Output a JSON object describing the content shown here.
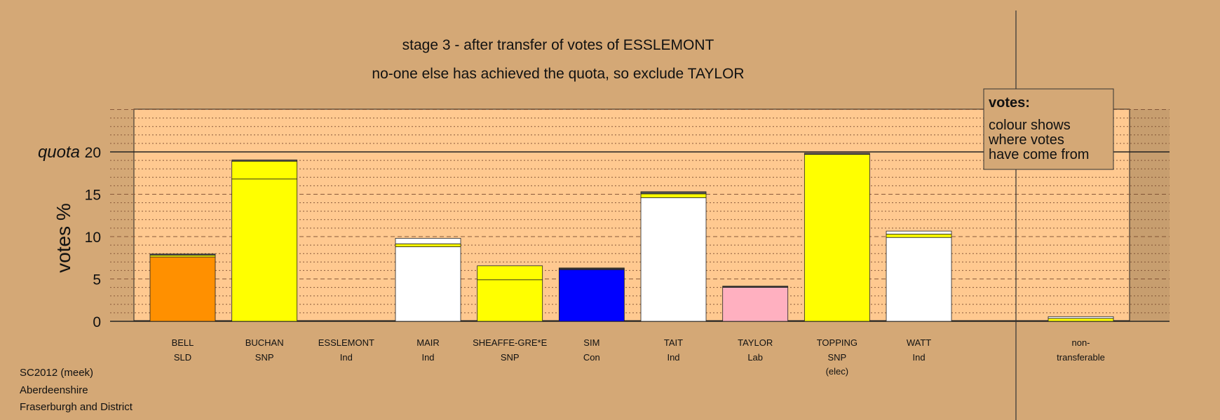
{
  "chart_data": {
    "type": "bar",
    "stacked": true,
    "title": "stage 3 - after transfer of votes of ESSLEMONT",
    "subtitle": "no-one else has achieved the quota, so exclude TAYLOR",
    "ylabel": "votes %",
    "ylim": [
      0,
      25
    ],
    "yticks": [
      0,
      5,
      10,
      15,
      20
    ],
    "quota_label": "quota",
    "quota_value": 20,
    "grid": true,
    "legend": {
      "title": "votes:",
      "lines": [
        "colour shows",
        "where votes",
        "have come from"
      ],
      "placement": "top-right"
    },
    "bars": [
      {
        "name": "BELL",
        "party": "SLD",
        "note": "",
        "segments": [
          {
            "value": 7.6,
            "color": "#ff9000"
          },
          {
            "value": 0.2,
            "color": "#ffff00"
          },
          {
            "value": 0.15,
            "color": "#555555"
          }
        ]
      },
      {
        "name": "BUCHAN",
        "party": "SNP",
        "note": "",
        "segments": [
          {
            "value": 16.8,
            "color": "#ffff00"
          },
          {
            "value": 2.1,
            "color": "#ffff00"
          },
          {
            "value": 0.15,
            "color": "#555555"
          }
        ]
      },
      {
        "name": "ESSLEMONT",
        "party": "Ind",
        "note": "",
        "segments": []
      },
      {
        "name": "MAIR",
        "party": "Ind",
        "note": "",
        "segments": [
          {
            "value": 8.8,
            "color": "#ffffff"
          },
          {
            "value": 0.35,
            "color": "#ffff00"
          },
          {
            "value": 0.65,
            "color": "#ffffff"
          }
        ]
      },
      {
        "name": "SHEAFFE-GRE*E",
        "party": "SNP",
        "note": "",
        "segments": [
          {
            "value": 4.9,
            "color": "#ffff00"
          },
          {
            "value": 1.65,
            "color": "#ffff00"
          }
        ]
      },
      {
        "name": "SIM",
        "party": "Con",
        "note": "",
        "segments": [
          {
            "value": 6.1,
            "color": "#0000ff"
          },
          {
            "value": 0.2,
            "color": "#333333"
          }
        ]
      },
      {
        "name": "TAIT",
        "party": "Ind",
        "note": "",
        "segments": [
          {
            "value": 14.6,
            "color": "#ffffff"
          },
          {
            "value": 0.45,
            "color": "#ffff00"
          },
          {
            "value": 0.25,
            "color": "#555555"
          }
        ]
      },
      {
        "name": "TAYLOR",
        "party": "Lab",
        "note": "",
        "segments": [
          {
            "value": 4.0,
            "color": "#ffb0c0"
          },
          {
            "value": 0.15,
            "color": "#333333"
          }
        ]
      },
      {
        "name": "TOPPING",
        "party": "SNP",
        "note": "(elec)",
        "segments": [
          {
            "value": 19.7,
            "color": "#ffff00"
          },
          {
            "value": 0.15,
            "color": "#555555"
          }
        ]
      },
      {
        "name": "WATT",
        "party": "Ind",
        "note": "",
        "segments": [
          {
            "value": 9.9,
            "color": "#ffffff"
          },
          {
            "value": 0.4,
            "color": "#ffff00"
          },
          {
            "value": 0.35,
            "color": "#ffffff"
          }
        ]
      }
    ],
    "nontransferable": {
      "label_lines": [
        "non-",
        "transferable"
      ],
      "segments": [
        {
          "value": 0.35,
          "color": "#ffff00"
        },
        {
          "value": 0.2,
          "color": "#ffffff"
        }
      ]
    },
    "colors": {
      "page_background": "#d4a876",
      "panel_background": "#ffc990",
      "grid": "#8a5a3a"
    }
  },
  "source": {
    "lines": [
      "SC2012 (meek)",
      "Aberdeenshire",
      "Fraserburgh and District"
    ]
  }
}
